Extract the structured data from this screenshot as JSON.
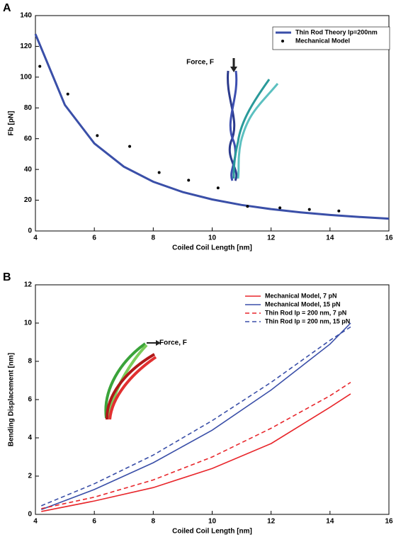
{
  "chart_data": [
    {
      "type": "line",
      "panel_label": "A",
      "xlabel": "Coiled Coil Length [nm]",
      "ylabel": "Fb [pN]",
      "xlim": [
        4,
        16
      ],
      "ylim": [
        0,
        140
      ],
      "xticks": [
        4,
        6,
        8,
        10,
        12,
        14,
        16
      ],
      "yticks": [
        0,
        20,
        40,
        60,
        80,
        100,
        120,
        140
      ],
      "legend": "upper right",
      "annotation": "Force, F",
      "series": [
        {
          "name": "Thin Rod Theory lp=200nm",
          "color": "#3a4fa8",
          "style": "solid",
          "x": [
            4,
            5,
            6,
            7,
            8,
            9,
            10,
            11,
            12,
            13,
            14,
            15,
            16
          ],
          "values": [
            128,
            81.9,
            56.9,
            41.8,
            32,
            25.3,
            20.5,
            16.9,
            14.2,
            12.1,
            10.4,
            9.1,
            8
          ]
        },
        {
          "name": "Mechanical Model",
          "color": "#000000",
          "style": "markers",
          "x": [
            4.15,
            5.1,
            6.1,
            7.2,
            8.2,
            9.2,
            10.2,
            11.2,
            12.3,
            13.3,
            14.3
          ],
          "values": [
            107,
            89,
            62,
            55,
            38,
            33,
            28,
            16,
            15,
            14,
            13
          ]
        }
      ]
    },
    {
      "type": "line",
      "panel_label": "B",
      "xlabel": "Coiled Coil Length [nm]",
      "ylabel": "Bending Displacement [nm]",
      "xlim": [
        4,
        16
      ],
      "ylim": [
        0,
        12
      ],
      "xticks": [
        4,
        6,
        8,
        10,
        12,
        14,
        16
      ],
      "yticks": [
        0,
        2,
        4,
        6,
        8,
        10,
        12
      ],
      "legend": "upper right",
      "annotation": "Force, F",
      "series": [
        {
          "name": "Mechanical Model, 7 pN",
          "color": "#e8262b",
          "style": "solid",
          "x": [
            4.2,
            6,
            8,
            10,
            12,
            14,
            14.7
          ],
          "values": [
            0.15,
            0.7,
            1.4,
            2.4,
            3.7,
            5.6,
            6.3
          ]
        },
        {
          "name": "Mechanical Model, 15 pN",
          "color": "#3a4fa8",
          "style": "solid",
          "x": [
            4.2,
            6,
            8,
            10,
            12,
            14,
            14.7
          ],
          "values": [
            0.25,
            1.3,
            2.7,
            4.4,
            6.5,
            8.9,
            10.0
          ]
        },
        {
          "name": "Thin Rod lp = 200 nm, 7 pN",
          "color": "#e8262b",
          "style": "dashed",
          "x": [
            4.2,
            6,
            8,
            10,
            12,
            14,
            14.7
          ],
          "values": [
            0.3,
            0.9,
            1.8,
            3.0,
            4.5,
            6.2,
            6.9
          ]
        },
        {
          "name": "Thin Rod lp = 200 nm, 15 pN",
          "color": "#3a4fa8",
          "style": "dashed",
          "x": [
            4.2,
            6,
            8,
            10,
            12,
            14,
            14.7
          ],
          "values": [
            0.45,
            1.6,
            3.1,
            4.9,
            6.9,
            9.1,
            9.8
          ]
        }
      ]
    }
  ]
}
